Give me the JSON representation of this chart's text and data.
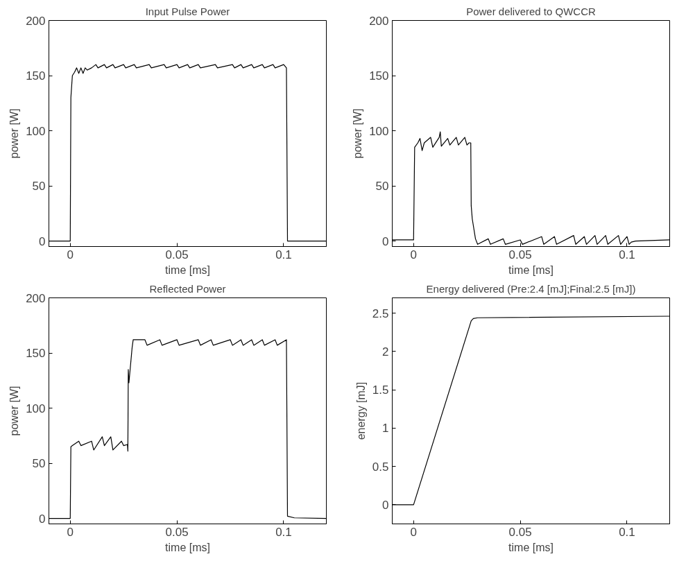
{
  "chart_data": [
    {
      "type": "line",
      "title": "Input Pulse Power",
      "xlabel": "time [ms]",
      "ylabel": "power [W]",
      "color": "#000000",
      "grid": false,
      "xlim": [
        -0.01,
        0.12
      ],
      "xticks": [
        0,
        0.05,
        0.1
      ],
      "ylim": [
        -5,
        200
      ],
      "yticks": [
        0,
        50,
        100,
        150,
        200
      ],
      "x": [
        -0.01,
        0,
        0.0003,
        0.001,
        0.002,
        0.003,
        0.004,
        0.005,
        0.006,
        0.007,
        0.008,
        0.01,
        0.012,
        0.013,
        0.016,
        0.017,
        0.02,
        0.021,
        0.025,
        0.026,
        0.03,
        0.031,
        0.037,
        0.038,
        0.044,
        0.045,
        0.05,
        0.051,
        0.055,
        0.056,
        0.06,
        0.061,
        0.068,
        0.069,
        0.076,
        0.077,
        0.08,
        0.081,
        0.085,
        0.086,
        0.09,
        0.091,
        0.095,
        0.096,
        0.1,
        0.1013,
        0.1018,
        0.105,
        0.12
      ],
      "values": [
        0,
        0,
        130,
        150,
        153,
        157,
        152,
        157,
        152,
        157,
        155,
        157,
        160,
        157,
        160,
        157,
        160,
        157,
        160,
        157,
        160,
        157,
        160,
        157,
        160,
        157,
        160,
        157,
        160,
        157,
        160,
        157,
        160,
        157,
        160,
        157,
        160,
        157,
        160,
        157,
        160,
        157,
        160,
        157,
        160,
        157,
        0,
        0,
        0
      ]
    },
    {
      "type": "line",
      "title": "Power delivered to QWCCR",
      "xlabel": "time [ms]",
      "ylabel": "power [W]",
      "color": "#000000",
      "grid": false,
      "xlim": [
        -0.01,
        0.12
      ],
      "xticks": [
        0,
        0.05,
        0.1
      ],
      "ylim": [
        -5,
        200
      ],
      "yticks": [
        0,
        50,
        100,
        150,
        200
      ],
      "x": [
        -0.01,
        0,
        0.0005,
        0.002,
        0.003,
        0.004,
        0.005,
        0.008,
        0.009,
        0.012,
        0.0125,
        0.013,
        0.016,
        0.017,
        0.02,
        0.021,
        0.024,
        0.025,
        0.026,
        0.0268,
        0.027,
        0.0275,
        0.029,
        0.03,
        0.035,
        0.036,
        0.042,
        0.043,
        0.05,
        0.051,
        0.06,
        0.061,
        0.066,
        0.067,
        0.075,
        0.076,
        0.08,
        0.081,
        0.085,
        0.086,
        0.09,
        0.091,
        0.096,
        0.097,
        0.1,
        0.101,
        0.102,
        0.104,
        0.12
      ],
      "values": [
        1,
        1,
        85,
        89,
        93,
        82,
        89,
        94,
        85,
        94,
        99,
        86,
        93,
        87,
        94,
        87,
        94,
        87,
        89,
        89,
        32,
        20,
        2,
        -3,
        2,
        -3,
        2,
        -3,
        1,
        -3,
        4,
        -3,
        4,
        -3,
        5,
        -3,
        4,
        -3,
        5,
        -3,
        5,
        -3,
        5,
        -3,
        4,
        -3,
        -1,
        0,
        1
      ]
    },
    {
      "type": "line",
      "title": "Reflected Power",
      "xlabel": "time [ms]",
      "ylabel": "power [W]",
      "color": "#000000",
      "grid": false,
      "xlim": [
        -0.01,
        0.12
      ],
      "xticks": [
        0,
        0.05,
        0.1
      ],
      "ylim": [
        -5,
        200
      ],
      "yticks": [
        0,
        50,
        100,
        150,
        200
      ],
      "x": [
        -0.01,
        0,
        0.0003,
        0.001,
        0.004,
        0.005,
        0.01,
        0.011,
        0.015,
        0.016,
        0.019,
        0.02,
        0.024,
        0.025,
        0.0268,
        0.027,
        0.0272,
        0.0275,
        0.029,
        0.0295,
        0.035,
        0.036,
        0.042,
        0.043,
        0.05,
        0.051,
        0.06,
        0.061,
        0.066,
        0.067,
        0.075,
        0.076,
        0.08,
        0.081,
        0.085,
        0.086,
        0.09,
        0.091,
        0.096,
        0.097,
        0.1013,
        0.1018,
        0.105,
        0.12
      ],
      "values": [
        0,
        0,
        65,
        66,
        70,
        66,
        70,
        62,
        74,
        66,
        74,
        62,
        70,
        66,
        67,
        61,
        135,
        123,
        155,
        162,
        162,
        157,
        162,
        157,
        162,
        157,
        162,
        157,
        162,
        157,
        162,
        157,
        162,
        157,
        162,
        157,
        162,
        157,
        162,
        157,
        162,
        2,
        0.5,
        0
      ]
    },
    {
      "type": "line",
      "title": "Energy delivered (Pre:2.4 [mJ];Final:2.5 [mJ])",
      "xlabel": "time [ms]",
      "ylabel": "energy [mJ]",
      "color": "#000000",
      "grid": false,
      "xlim": [
        -0.01,
        0.12
      ],
      "xticks": [
        0,
        0.05,
        0.1
      ],
      "ylim": [
        -0.25,
        2.7
      ],
      "yticks": [
        0,
        0.5,
        1,
        1.5,
        2,
        2.5
      ],
      "x": [
        -0.01,
        0,
        0.027,
        0.028,
        0.03,
        0.12
      ],
      "values": [
        0,
        0,
        2.4,
        2.43,
        2.44,
        2.46
      ]
    }
  ]
}
